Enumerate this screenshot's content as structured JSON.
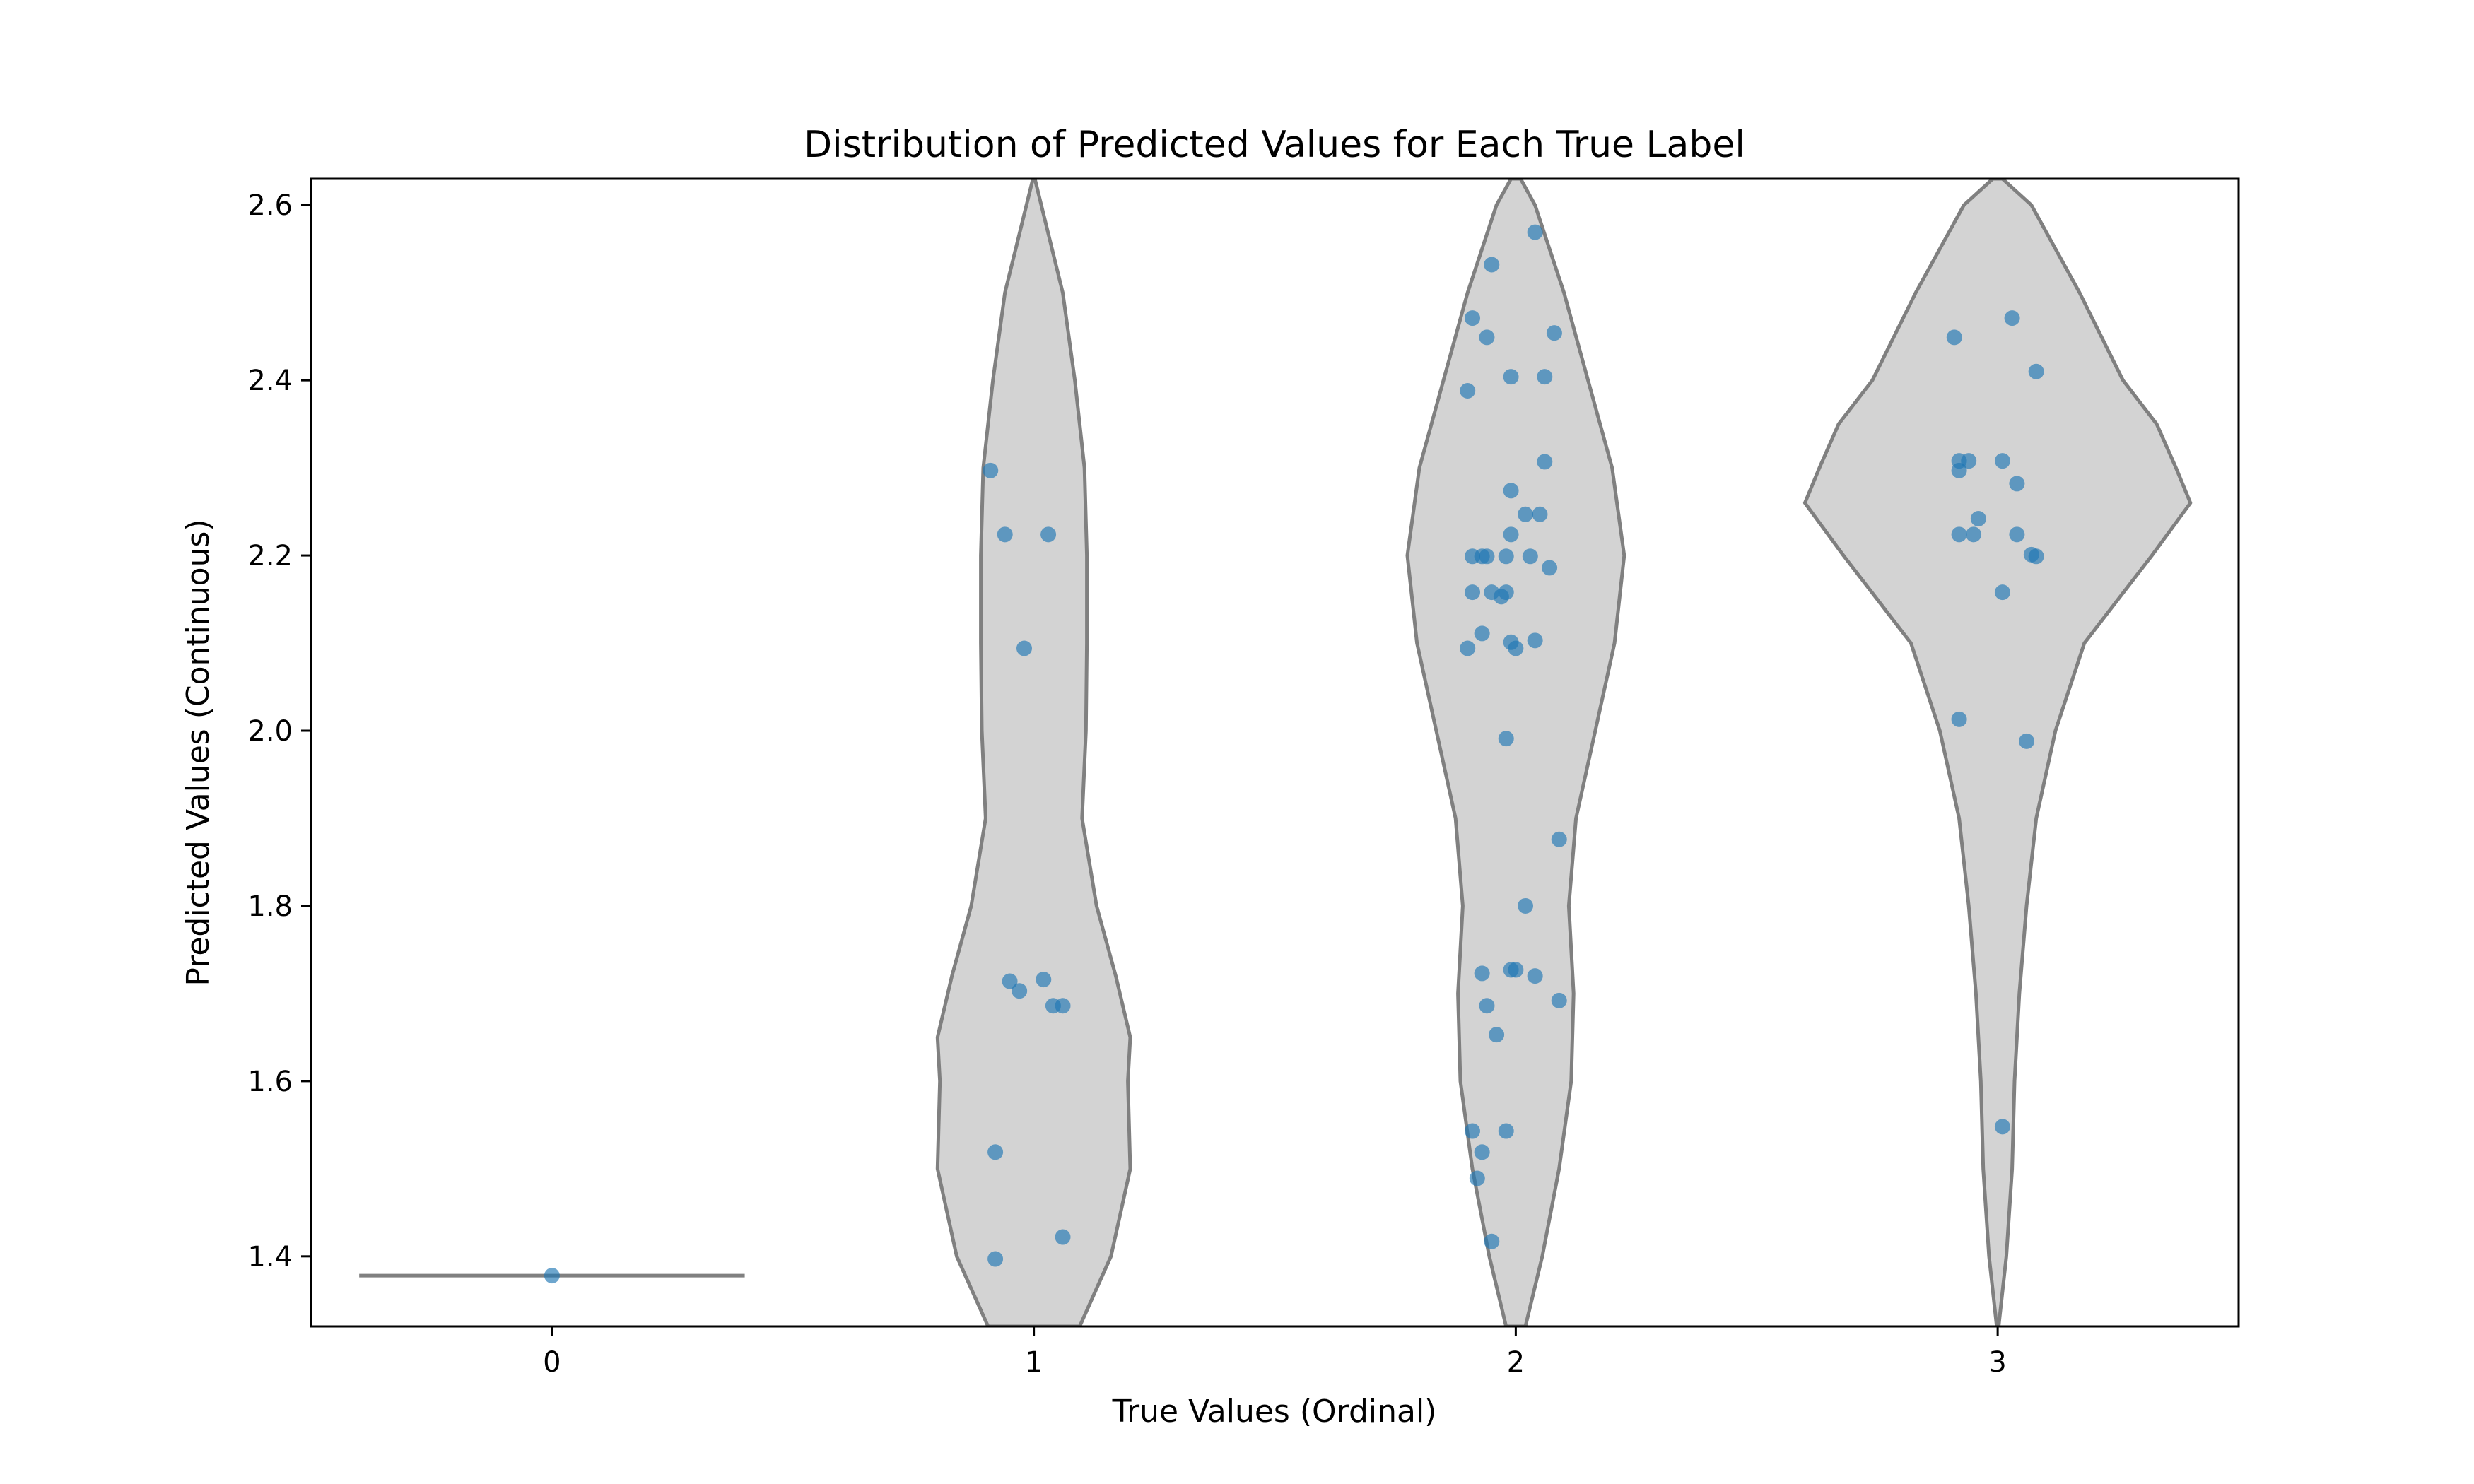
{
  "chart_data": {
    "type": "violin",
    "title": "Distribution of Predicted Values for Each True Label",
    "xlabel": "True Values (Ordinal)",
    "ylabel": "Predicted Values (Continuous)",
    "categories": [
      "0",
      "1",
      "2",
      "3"
    ],
    "xlim": [
      -0.5,
      3.5
    ],
    "ylim": [
      1.32,
      2.63
    ],
    "yticks": [
      1.4,
      1.6,
      1.8,
      2.0,
      2.2,
      2.4,
      2.6
    ],
    "ytick_labels": [
      "1.4",
      "1.6",
      "1.8",
      "2.0",
      "2.2",
      "2.4",
      "2.6"
    ],
    "grid": false,
    "colors": {
      "violin_fill": "#d3d3d3",
      "violin_edge": "#808080",
      "points": "#1f77b4"
    },
    "points": [
      {
        "x": 0.0,
        "y": 1.378
      },
      {
        "x": 0.91,
        "y": 2.297
      },
      {
        "x": 0.94,
        "y": 2.224
      },
      {
        "x": 1.03,
        "y": 2.224
      },
      {
        "x": 0.98,
        "y": 2.094
      },
      {
        "x": 0.95,
        "y": 1.714
      },
      {
        "x": 0.97,
        "y": 1.703
      },
      {
        "x": 1.02,
        "y": 1.716
      },
      {
        "x": 1.04,
        "y": 1.686
      },
      {
        "x": 1.06,
        "y": 1.686
      },
      {
        "x": 0.92,
        "y": 1.519
      },
      {
        "x": 0.92,
        "y": 1.397
      },
      {
        "x": 1.06,
        "y": 1.422
      },
      {
        "x": 2.04,
        "y": 2.569
      },
      {
        "x": 1.95,
        "y": 2.532
      },
      {
        "x": 1.91,
        "y": 2.471
      },
      {
        "x": 2.08,
        "y": 2.454
      },
      {
        "x": 1.94,
        "y": 2.449
      },
      {
        "x": 1.99,
        "y": 2.404
      },
      {
        "x": 2.06,
        "y": 2.404
      },
      {
        "x": 1.9,
        "y": 2.388
      },
      {
        "x": 2.06,
        "y": 2.307
      },
      {
        "x": 1.99,
        "y": 2.274
      },
      {
        "x": 2.02,
        "y": 2.247
      },
      {
        "x": 2.05,
        "y": 2.247
      },
      {
        "x": 1.99,
        "y": 2.224
      },
      {
        "x": 1.91,
        "y": 2.199
      },
      {
        "x": 1.93,
        "y": 2.199
      },
      {
        "x": 1.94,
        "y": 2.199
      },
      {
        "x": 1.98,
        "y": 2.199
      },
      {
        "x": 2.03,
        "y": 2.199
      },
      {
        "x": 2.07,
        "y": 2.186
      },
      {
        "x": 1.91,
        "y": 2.158
      },
      {
        "x": 1.95,
        "y": 2.158
      },
      {
        "x": 1.97,
        "y": 2.153
      },
      {
        "x": 1.98,
        "y": 2.158
      },
      {
        "x": 1.93,
        "y": 2.111
      },
      {
        "x": 1.99,
        "y": 2.101
      },
      {
        "x": 2.04,
        "y": 2.103
      },
      {
        "x": 1.9,
        "y": 2.094
      },
      {
        "x": 2.0,
        "y": 2.094
      },
      {
        "x": 1.98,
        "y": 1.991
      },
      {
        "x": 2.09,
        "y": 1.876
      },
      {
        "x": 2.02,
        "y": 1.8
      },
      {
        "x": 1.99,
        "y": 1.727
      },
      {
        "x": 2.0,
        "y": 1.727
      },
      {
        "x": 1.93,
        "y": 1.723
      },
      {
        "x": 2.04,
        "y": 1.72
      },
      {
        "x": 2.09,
        "y": 1.692
      },
      {
        "x": 1.94,
        "y": 1.686
      },
      {
        "x": 1.96,
        "y": 1.653
      },
      {
        "x": 1.91,
        "y": 1.543
      },
      {
        "x": 1.98,
        "y": 1.543
      },
      {
        "x": 1.93,
        "y": 1.519
      },
      {
        "x": 1.92,
        "y": 1.489
      },
      {
        "x": 1.95,
        "y": 1.417
      },
      {
        "x": 3.03,
        "y": 2.471
      },
      {
        "x": 2.91,
        "y": 2.449
      },
      {
        "x": 3.08,
        "y": 2.41
      },
      {
        "x": 2.92,
        "y": 2.308
      },
      {
        "x": 2.94,
        "y": 2.308
      },
      {
        "x": 3.01,
        "y": 2.308
      },
      {
        "x": 2.92,
        "y": 2.297
      },
      {
        "x": 3.04,
        "y": 2.282
      },
      {
        "x": 2.96,
        "y": 2.242
      },
      {
        "x": 2.92,
        "y": 2.224
      },
      {
        "x": 2.95,
        "y": 2.224
      },
      {
        "x": 3.04,
        "y": 2.224
      },
      {
        "x": 3.07,
        "y": 2.201
      },
      {
        "x": 3.08,
        "y": 2.199
      },
      {
        "x": 3.01,
        "y": 2.158
      },
      {
        "x": 2.92,
        "y": 2.013
      },
      {
        "x": 3.06,
        "y": 1.988
      },
      {
        "x": 3.01,
        "y": 1.548
      }
    ],
    "violins": [
      {
        "category": "0",
        "position": 0,
        "profile": [
          [
            1.378,
            0.4
          ]
        ]
      },
      {
        "category": "1",
        "position": 1,
        "profile": [
          [
            1.32,
            0.095
          ],
          [
            1.4,
            0.16
          ],
          [
            1.5,
            0.2
          ],
          [
            1.6,
            0.195
          ],
          [
            1.65,
            0.2
          ],
          [
            1.72,
            0.17
          ],
          [
            1.8,
            0.13
          ],
          [
            1.9,
            0.1
          ],
          [
            2.0,
            0.108
          ],
          [
            2.1,
            0.11
          ],
          [
            2.2,
            0.11
          ],
          [
            2.3,
            0.105
          ],
          [
            2.4,
            0.085
          ],
          [
            2.5,
            0.06
          ],
          [
            2.63,
            0.002
          ]
        ]
      },
      {
        "category": "2",
        "position": 2,
        "profile": [
          [
            1.32,
            0.02
          ],
          [
            1.4,
            0.055
          ],
          [
            1.5,
            0.09
          ],
          [
            1.6,
            0.115
          ],
          [
            1.7,
            0.12
          ],
          [
            1.8,
            0.11
          ],
          [
            1.9,
            0.125
          ],
          [
            2.0,
            0.165
          ],
          [
            2.1,
            0.205
          ],
          [
            2.2,
            0.225
          ],
          [
            2.3,
            0.2
          ],
          [
            2.4,
            0.15
          ],
          [
            2.5,
            0.1
          ],
          [
            2.6,
            0.04
          ],
          [
            2.63,
            0.01
          ]
        ]
      },
      {
        "category": "3",
        "position": 3,
        "profile": [
          [
            1.32,
            0.002
          ],
          [
            1.4,
            0.018
          ],
          [
            1.5,
            0.03
          ],
          [
            1.6,
            0.035
          ],
          [
            1.7,
            0.045
          ],
          [
            1.8,
            0.06
          ],
          [
            1.9,
            0.08
          ],
          [
            2.0,
            0.12
          ],
          [
            2.1,
            0.18
          ],
          [
            2.2,
            0.32
          ],
          [
            2.26,
            0.4
          ],
          [
            2.3,
            0.37
          ],
          [
            2.35,
            0.33
          ],
          [
            2.4,
            0.26
          ],
          [
            2.5,
            0.17
          ],
          [
            2.6,
            0.07
          ],
          [
            2.63,
            0.01
          ]
        ]
      }
    ]
  }
}
